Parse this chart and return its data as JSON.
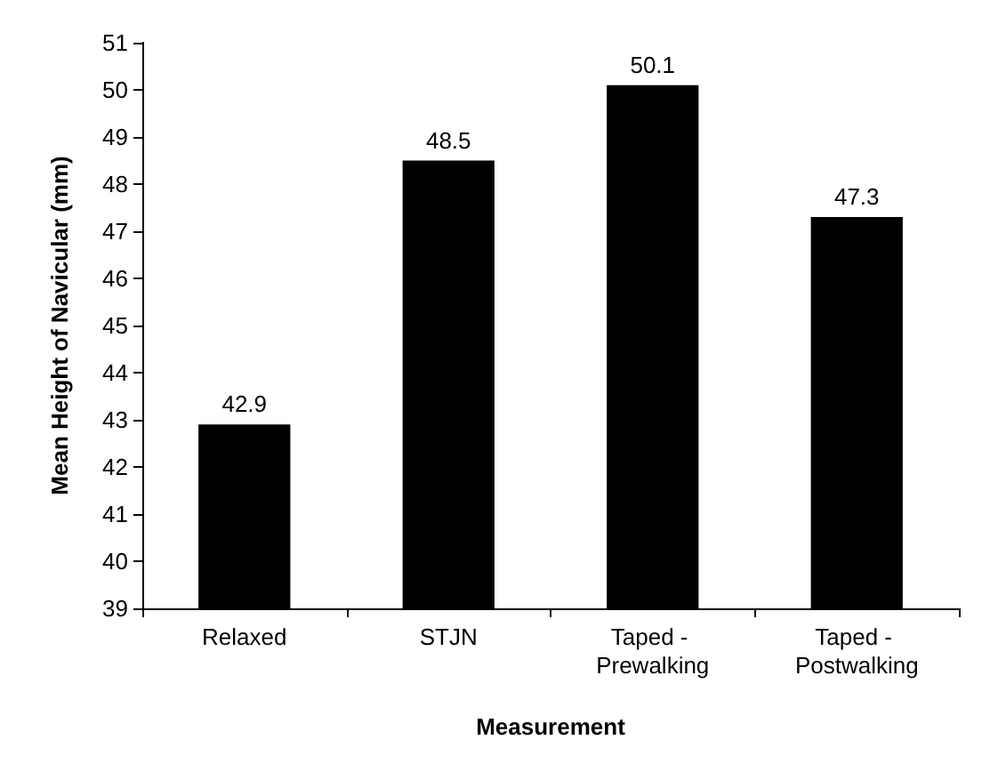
{
  "chart_data": {
    "type": "bar",
    "xlabel": "Measurement",
    "ylabel": "Mean Height of Navicular (mm)",
    "categories": [
      "Relaxed",
      "STJN",
      "Taped - Prewalking",
      "Taped - Postwalking"
    ],
    "values": [
      42.9,
      48.5,
      50.1,
      47.3
    ],
    "color": "#000000",
    "ylim": [
      39,
      51
    ],
    "yticks": [
      39,
      40,
      41,
      42,
      43,
      44,
      45,
      46,
      47,
      48,
      49,
      50,
      51
    ],
    "grid": false,
    "data_labels": true
  }
}
